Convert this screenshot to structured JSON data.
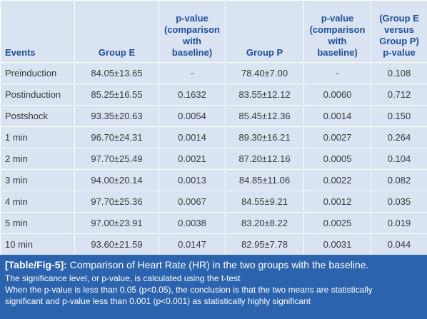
{
  "table": {
    "headers": [
      "Events",
      "Group E",
      "p-value (comparison with baseline)",
      "Group P",
      "p-value (comparison with baseline)",
      "(Group E versus Group P) p-value"
    ],
    "rows": [
      [
        "Preinduction",
        "84.05±13.65",
        "-",
        "78.40±7.00",
        "-",
        "0.108"
      ],
      [
        "Postinduction",
        "85.25±16.55",
        "0.1632",
        "83.55±12.12",
        "0.0060",
        "0.712"
      ],
      [
        "Postshock",
        "93.35±20.63",
        "0.0054",
        "85.45±12.36",
        "0.0014",
        "0.150"
      ],
      [
        "1 min",
        "96.70±24.31",
        "0.0014",
        "89.30±16.21",
        "0.0027",
        "0.264"
      ],
      [
        "2 min",
        "97.70±25.49",
        "0.0021",
        "87.20±12.16",
        "0.0005",
        "0.104"
      ],
      [
        "3 min",
        "94.00±20.14",
        "0.0013",
        "84.85±11.06",
        "0.0022",
        "0.082"
      ],
      [
        "4 min",
        "97.70±25.36",
        "0.0067",
        "84.55±9.21",
        "0.0012",
        "0.035"
      ],
      [
        "5 min",
        "97.00±23.91",
        "0.0038",
        "83.20±8.22",
        "0.0025",
        "0.019"
      ],
      [
        "10 min",
        "93.60±21.59",
        "0.0147",
        "82.95±7.78",
        "0.0031",
        "0.044"
      ]
    ]
  },
  "caption": {
    "label": "[Table/Fig-5]:",
    "title": "Comparison of Heart Rate (HR) in the two groups with the baseline.",
    "line1": "The significance level, or p-value, is calculated using the t-test",
    "line2": "When the p-value is less than 0.05 (p<0.05), the conclusion is that the two means are statistically",
    "line3": "significant and p-value less than 0.001 (p<0.001) as statistically highly significant"
  },
  "colors": {
    "header_text": "#1f4e9a",
    "table_bg": "#d9e3f1",
    "caption_bg": "#2c63ae",
    "caption_text": "#ffffff"
  }
}
